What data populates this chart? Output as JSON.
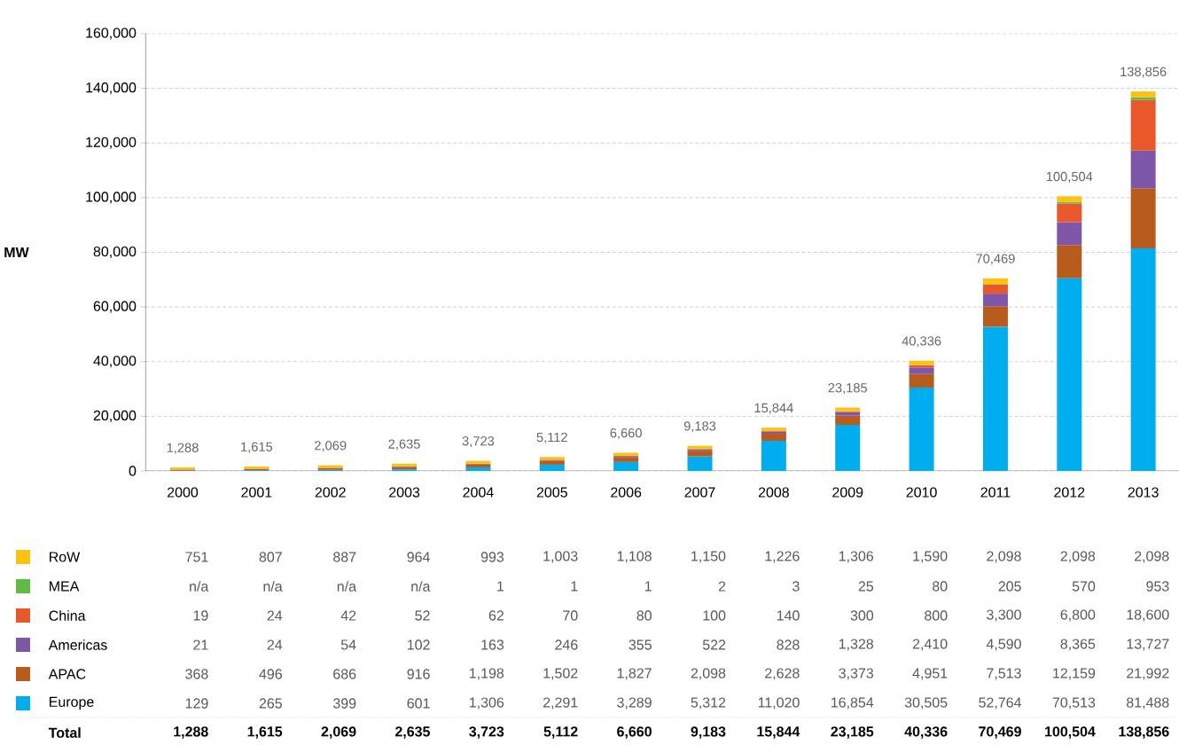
{
  "chart_data": {
    "type": "bar",
    "stacked": true,
    "ylabel": "MW",
    "categories": [
      "2000",
      "2001",
      "2002",
      "2003",
      "2004",
      "2005",
      "2006",
      "2007",
      "2008",
      "2009",
      "2010",
      "2011",
      "2012",
      "2013"
    ],
    "series": [
      {
        "name": "Europe",
        "color": "#00aeef",
        "values": [
          129,
          265,
          399,
          601,
          1306,
          2291,
          3289,
          5312,
          11020,
          16854,
          30505,
          52764,
          70513,
          81488
        ],
        "value_labels": [
          "129",
          "265",
          "399",
          "601",
          "1,306",
          "2,291",
          "3,289",
          "5,312",
          "11,020",
          "16,854",
          "30,505",
          "52,764",
          "70,513",
          "81,488"
        ]
      },
      {
        "name": "APAC",
        "color": "#b85c1e",
        "values": [
          368,
          496,
          686,
          916,
          1198,
          1502,
          1827,
          2098,
          2628,
          3373,
          4951,
          7513,
          12159,
          21992
        ],
        "value_labels": [
          "368",
          "496",
          "686",
          "916",
          "1,198",
          "1,502",
          "1,827",
          "2,098",
          "2,628",
          "3,373",
          "4,951",
          "7,513",
          "12,159",
          "21,992"
        ]
      },
      {
        "name": "Americas",
        "color": "#7f57a8",
        "values": [
          21,
          24,
          54,
          102,
          163,
          246,
          355,
          522,
          828,
          1328,
          2410,
          4590,
          8365,
          13727
        ],
        "value_labels": [
          "21",
          "24",
          "54",
          "102",
          "163",
          "246",
          "355",
          "522",
          "828",
          "1,328",
          "2,410",
          "4,590",
          "8,365",
          "13,727"
        ]
      },
      {
        "name": "China",
        "color": "#e8582a",
        "values": [
          19,
          24,
          42,
          52,
          62,
          70,
          80,
          100,
          140,
          300,
          800,
          3300,
          6800,
          18600
        ],
        "value_labels": [
          "19",
          "24",
          "42",
          "52",
          "62",
          "70",
          "80",
          "100",
          "140",
          "300",
          "800",
          "3,300",
          "6,800",
          "18,600"
        ]
      },
      {
        "name": "MEA",
        "color": "#5dbb46",
        "values": [
          null,
          null,
          null,
          null,
          1,
          1,
          1,
          2,
          3,
          25,
          80,
          205,
          570,
          953
        ],
        "value_labels": [
          "n/a",
          "n/a",
          "n/a",
          "n/a",
          "1",
          "1",
          "1",
          "2",
          "3",
          "25",
          "80",
          "205",
          "570",
          "953"
        ]
      },
      {
        "name": "RoW",
        "color": "#fdc20f",
        "values": [
          751,
          807,
          887,
          964,
          993,
          1003,
          1108,
          1150,
          1226,
          1306,
          1590,
          2098,
          2098,
          2098
        ],
        "value_labels": [
          "751",
          "807",
          "887",
          "964",
          "993",
          "1,003",
          "1,108",
          "1,150",
          "1,226",
          "1,306",
          "1,590",
          "2,098",
          "2,098",
          "2,098"
        ]
      }
    ],
    "totals": [
      "1,288",
      "1,615",
      "2,069",
      "2,635",
      "3,723",
      "5,112",
      "6,660",
      "9,183",
      "15,844",
      "23,185",
      "40,336",
      "70,469",
      "100,504",
      "138,856"
    ],
    "annotations": [
      "Total"
    ],
    "ylim": [
      0,
      160000
    ],
    "yticks": [
      {
        "value": 0,
        "label": "0"
      },
      {
        "value": 20000,
        "label": "20,000"
      },
      {
        "value": 40000,
        "label": "40,000"
      },
      {
        "value": 60000,
        "label": "60,000"
      },
      {
        "value": 80000,
        "label": "80,000"
      },
      {
        "value": 100000,
        "label": "100,000"
      },
      {
        "value": 120000,
        "label": "120,000"
      },
      {
        "value": 140000,
        "label": "140,000"
      },
      {
        "value": 160000,
        "label": "160,000"
      }
    ],
    "grid": "y",
    "legend": "bottom"
  }
}
